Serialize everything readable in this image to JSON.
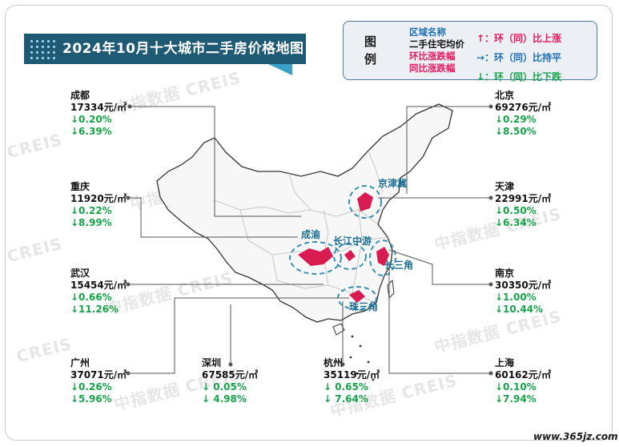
{
  "title": "2024年10月十大城市二手房价格地图",
  "legend": {
    "heading": "图例",
    "lines": [
      "区域名称",
      "二手住宅均价",
      "环比涨跌幅",
      "同比涨跌幅"
    ],
    "keys": [
      "↑：环（同）比上涨",
      "→：环（同）比持平",
      "↓：环（同）比下跌"
    ],
    "colors": {
      "region": "#1f6fb4",
      "price": "#111111",
      "mom": "#e8175d",
      "yoy": "#e8175d",
      "up": "#e8175d",
      "flat": "#1f6fb4",
      "down": "#17a34a"
    }
  },
  "regions": [
    "京津冀",
    "成渝",
    "长江中游",
    "长三角",
    "珠三角"
  ],
  "cities": [
    {
      "name": "成都",
      "price": "17334元/㎡",
      "mom": "↓0.20%",
      "yoy": "↓6.39%"
    },
    {
      "name": "重庆",
      "price": "11920元/㎡",
      "mom": "↓0.22%",
      "yoy": "↓8.99%"
    },
    {
      "name": "武汉",
      "price": "15454元/㎡",
      "mom": "↓0.66%",
      "yoy": "↓11.26%"
    },
    {
      "name": "广州",
      "price": "37071元/㎡",
      "mom": "↓0.26%",
      "yoy": "↓5.96%"
    },
    {
      "name": "深圳",
      "price": "67585元/㎡",
      "mom": "↓ 0.05%",
      "yoy": "↓ 4.98%"
    },
    {
      "name": "杭州",
      "price": "35119元/㎡",
      "mom": "↓ 0.65%",
      "yoy": "↓ 7.64%"
    },
    {
      "name": "北京",
      "price": "69276元/㎡",
      "mom": "↓0.29%",
      "yoy": "↓8.50%"
    },
    {
      "name": "天津",
      "price": "22991元/㎡",
      "mom": "↓0.50%",
      "yoy": "↓6.34%"
    },
    {
      "name": "南京",
      "price": "30350元/㎡",
      "mom": "↓1.00%",
      "yoy": "↓10.44%"
    },
    {
      "name": "上海",
      "price": "60162元/㎡",
      "mom": "↓0.10%",
      "yoy": "↓7.94%"
    }
  ],
  "watermark": {
    "cn": "中指数据",
    "en": "CREIS"
  },
  "site": "www.365jz.com"
}
